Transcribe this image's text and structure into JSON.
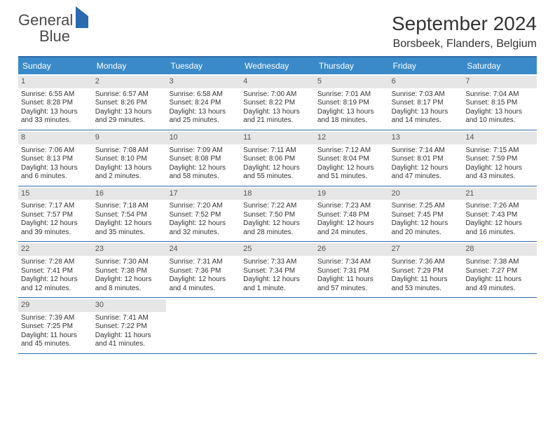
{
  "logo": {
    "text1": "General",
    "text2": "Blue"
  },
  "title": {
    "main": "September 2024",
    "sub": "Borsbeek, Flanders, Belgium"
  },
  "style": {
    "cols": 7,
    "header_bg": "#3a8ac9",
    "header_fg": "#ffffff",
    "border_color": "#2f6aa8",
    "numbar_bg": "#e6e6e6",
    "body_font_size": 10,
    "dow_font_size": 12,
    "title_font_size": 28,
    "sub_font_size": 16
  },
  "dow": [
    "Sunday",
    "Monday",
    "Tuesday",
    "Wednesday",
    "Thursday",
    "Friday",
    "Saturday"
  ],
  "weeks": [
    [
      {
        "n": "1",
        "sr": "Sunrise: 6:55 AM",
        "ss": "Sunset: 8:28 PM",
        "d1": "Daylight: 13 hours",
        "d2": "and 33 minutes."
      },
      {
        "n": "2",
        "sr": "Sunrise: 6:57 AM",
        "ss": "Sunset: 8:26 PM",
        "d1": "Daylight: 13 hours",
        "d2": "and 29 minutes."
      },
      {
        "n": "3",
        "sr": "Sunrise: 6:58 AM",
        "ss": "Sunset: 8:24 PM",
        "d1": "Daylight: 13 hours",
        "d2": "and 25 minutes."
      },
      {
        "n": "4",
        "sr": "Sunrise: 7:00 AM",
        "ss": "Sunset: 8:22 PM",
        "d1": "Daylight: 13 hours",
        "d2": "and 21 minutes."
      },
      {
        "n": "5",
        "sr": "Sunrise: 7:01 AM",
        "ss": "Sunset: 8:19 PM",
        "d1": "Daylight: 13 hours",
        "d2": "and 18 minutes."
      },
      {
        "n": "6",
        "sr": "Sunrise: 7:03 AM",
        "ss": "Sunset: 8:17 PM",
        "d1": "Daylight: 13 hours",
        "d2": "and 14 minutes."
      },
      {
        "n": "7",
        "sr": "Sunrise: 7:04 AM",
        "ss": "Sunset: 8:15 PM",
        "d1": "Daylight: 13 hours",
        "d2": "and 10 minutes."
      }
    ],
    [
      {
        "n": "8",
        "sr": "Sunrise: 7:06 AM",
        "ss": "Sunset: 8:13 PM",
        "d1": "Daylight: 13 hours",
        "d2": "and 6 minutes."
      },
      {
        "n": "9",
        "sr": "Sunrise: 7:08 AM",
        "ss": "Sunset: 8:10 PM",
        "d1": "Daylight: 13 hours",
        "d2": "and 2 minutes."
      },
      {
        "n": "10",
        "sr": "Sunrise: 7:09 AM",
        "ss": "Sunset: 8:08 PM",
        "d1": "Daylight: 12 hours",
        "d2": "and 58 minutes."
      },
      {
        "n": "11",
        "sr": "Sunrise: 7:11 AM",
        "ss": "Sunset: 8:06 PM",
        "d1": "Daylight: 12 hours",
        "d2": "and 55 minutes."
      },
      {
        "n": "12",
        "sr": "Sunrise: 7:12 AM",
        "ss": "Sunset: 8:04 PM",
        "d1": "Daylight: 12 hours",
        "d2": "and 51 minutes."
      },
      {
        "n": "13",
        "sr": "Sunrise: 7:14 AM",
        "ss": "Sunset: 8:01 PM",
        "d1": "Daylight: 12 hours",
        "d2": "and 47 minutes."
      },
      {
        "n": "14",
        "sr": "Sunrise: 7:15 AM",
        "ss": "Sunset: 7:59 PM",
        "d1": "Daylight: 12 hours",
        "d2": "and 43 minutes."
      }
    ],
    [
      {
        "n": "15",
        "sr": "Sunrise: 7:17 AM",
        "ss": "Sunset: 7:57 PM",
        "d1": "Daylight: 12 hours",
        "d2": "and 39 minutes."
      },
      {
        "n": "16",
        "sr": "Sunrise: 7:18 AM",
        "ss": "Sunset: 7:54 PM",
        "d1": "Daylight: 12 hours",
        "d2": "and 35 minutes."
      },
      {
        "n": "17",
        "sr": "Sunrise: 7:20 AM",
        "ss": "Sunset: 7:52 PM",
        "d1": "Daylight: 12 hours",
        "d2": "and 32 minutes."
      },
      {
        "n": "18",
        "sr": "Sunrise: 7:22 AM",
        "ss": "Sunset: 7:50 PM",
        "d1": "Daylight: 12 hours",
        "d2": "and 28 minutes."
      },
      {
        "n": "19",
        "sr": "Sunrise: 7:23 AM",
        "ss": "Sunset: 7:48 PM",
        "d1": "Daylight: 12 hours",
        "d2": "and 24 minutes."
      },
      {
        "n": "20",
        "sr": "Sunrise: 7:25 AM",
        "ss": "Sunset: 7:45 PM",
        "d1": "Daylight: 12 hours",
        "d2": "and 20 minutes."
      },
      {
        "n": "21",
        "sr": "Sunrise: 7:26 AM",
        "ss": "Sunset: 7:43 PM",
        "d1": "Daylight: 12 hours",
        "d2": "and 16 minutes."
      }
    ],
    [
      {
        "n": "22",
        "sr": "Sunrise: 7:28 AM",
        "ss": "Sunset: 7:41 PM",
        "d1": "Daylight: 12 hours",
        "d2": "and 12 minutes."
      },
      {
        "n": "23",
        "sr": "Sunrise: 7:30 AM",
        "ss": "Sunset: 7:38 PM",
        "d1": "Daylight: 12 hours",
        "d2": "and 8 minutes."
      },
      {
        "n": "24",
        "sr": "Sunrise: 7:31 AM",
        "ss": "Sunset: 7:36 PM",
        "d1": "Daylight: 12 hours",
        "d2": "and 4 minutes."
      },
      {
        "n": "25",
        "sr": "Sunrise: 7:33 AM",
        "ss": "Sunset: 7:34 PM",
        "d1": "Daylight: 12 hours",
        "d2": "and 1 minute."
      },
      {
        "n": "26",
        "sr": "Sunrise: 7:34 AM",
        "ss": "Sunset: 7:31 PM",
        "d1": "Daylight: 11 hours",
        "d2": "and 57 minutes."
      },
      {
        "n": "27",
        "sr": "Sunrise: 7:36 AM",
        "ss": "Sunset: 7:29 PM",
        "d1": "Daylight: 11 hours",
        "d2": "and 53 minutes."
      },
      {
        "n": "28",
        "sr": "Sunrise: 7:38 AM",
        "ss": "Sunset: 7:27 PM",
        "d1": "Daylight: 11 hours",
        "d2": "and 49 minutes."
      }
    ],
    [
      {
        "n": "29",
        "sr": "Sunrise: 7:39 AM",
        "ss": "Sunset: 7:25 PM",
        "d1": "Daylight: 11 hours",
        "d2": "and 45 minutes."
      },
      {
        "n": "30",
        "sr": "Sunrise: 7:41 AM",
        "ss": "Sunset: 7:22 PM",
        "d1": "Daylight: 11 hours",
        "d2": "and 41 minutes."
      },
      null,
      null,
      null,
      null,
      null
    ]
  ]
}
